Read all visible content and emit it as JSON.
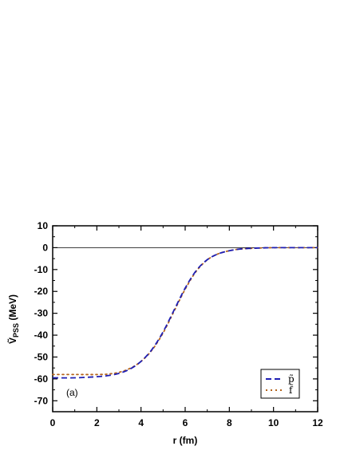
{
  "chart_data": {
    "type": "line",
    "xlabel": "r (fm)",
    "ylabel": "Ṽ",
    "ylabel_sub": "PSS",
    "ylabel_unit": " (MeV)",
    "panel_label": "(a)",
    "xlim": [
      0,
      12
    ],
    "ylim": [
      -75,
      10
    ],
    "xticks": [
      0,
      2,
      4,
      6,
      8,
      10,
      12
    ],
    "yticks": [
      10,
      0,
      -10,
      -20,
      -30,
      -40,
      -50,
      -60,
      -70
    ],
    "reference_line_y": 0,
    "grid": false,
    "legend_position": "bottom-right",
    "series": [
      {
        "name": "p̃",
        "color": "#1f1fb4",
        "style": "dashed",
        "x": [
          0,
          1,
          2,
          2.5,
          3,
          3.5,
          4,
          4.5,
          5,
          5.5,
          6,
          6.5,
          7,
          7.5,
          8,
          8.5,
          9,
          9.5,
          10,
          11,
          12
        ],
        "y": [
          -59.5,
          -59.5,
          -59,
          -58.5,
          -57.5,
          -55.5,
          -52,
          -46.5,
          -38.5,
          -28.5,
          -18.5,
          -10.5,
          -5.5,
          -2.8,
          -1.4,
          -0.6,
          -0.3,
          -0.1,
          0,
          0,
          0
        ]
      },
      {
        "name": "f̃",
        "color": "#b5651d",
        "style": "dotted",
        "x": [
          0,
          1,
          2,
          2.5,
          3,
          3.5,
          4,
          4.5,
          5,
          5.5,
          6,
          6.5,
          7,
          7.5,
          8,
          8.5,
          9,
          9.5,
          10,
          11,
          12
        ],
        "y": [
          -58,
          -58,
          -58,
          -57.8,
          -57,
          -55.2,
          -52,
          -46.8,
          -39,
          -29,
          -19,
          -10.8,
          -5.6,
          -2.8,
          -1.4,
          -0.6,
          -0.3,
          -0.1,
          0,
          0,
          0
        ]
      }
    ]
  }
}
